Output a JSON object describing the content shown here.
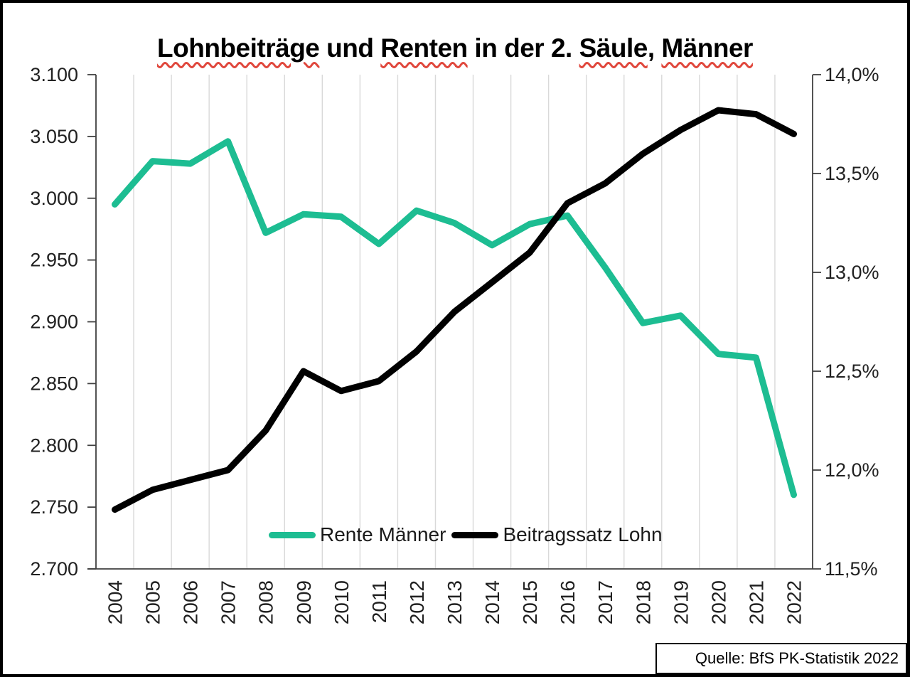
{
  "title": {
    "full": "Lohnbeiträge und Renten in der 2. Säule, Männer",
    "segments": [
      {
        "text": "Lohnbeiträge",
        "misspelled": true
      },
      {
        "text": " und ",
        "misspelled": false
      },
      {
        "text": "Renten",
        "misspelled": true
      },
      {
        "text": " in der 2. ",
        "misspelled": false
      },
      {
        "text": "Säule",
        "misspelled": true
      },
      {
        "text": ", ",
        "misspelled": false
      },
      {
        "text": "Männer",
        "misspelled": true
      }
    ]
  },
  "source_note": "Quelle: BfS PK-Statistik 2022",
  "colors": {
    "rente": "#1dbd92",
    "beitrag": "#000000",
    "gridline": "#d9d9d9",
    "axis_line": "#404040",
    "axis_text": "#212121",
    "squiggle": "#e0473c"
  },
  "chart_data": {
    "type": "line",
    "title": "Lohnbeiträge und Renten in der 2. Säule, Männer",
    "grid": "vertical-only",
    "legend_position": "bottom-center-inside",
    "categories": [
      "2004",
      "2005",
      "2006",
      "2007",
      "2008",
      "2009",
      "2010",
      "2011",
      "2012",
      "2013",
      "2014",
      "2015",
      "2016",
      "2017",
      "2018",
      "2019",
      "2020",
      "2021",
      "2022"
    ],
    "series": [
      {
        "name": "Rente Männer",
        "axis": "left",
        "color_key": "rente",
        "values": [
          2995,
          3030,
          3028,
          3046,
          2972,
          2987,
          2985,
          2963,
          2990,
          2980,
          2962,
          2979,
          2986,
          2944,
          2899,
          2905,
          2874,
          2871,
          2760
        ]
      },
      {
        "name": "Beitragssatz Lohn",
        "axis": "right",
        "color_key": "beitrag",
        "values": [
          11.8,
          11.9,
          11.95,
          12.0,
          12.2,
          12.5,
          12.4,
          12.45,
          12.6,
          12.8,
          12.95,
          13.1,
          13.35,
          13.45,
          13.6,
          13.72,
          13.82,
          13.8,
          13.7
        ]
      }
    ],
    "left_axis": {
      "min": 2700,
      "max": 3100,
      "tick_values": [
        3100,
        3050,
        3000,
        2950,
        2900,
        2850,
        2800,
        2750,
        2700
      ],
      "tick_labels": [
        "3.100",
        "3.050",
        "3.000",
        "2.950",
        "2.900",
        "2.850",
        "2.800",
        "2.750",
        "2.700"
      ]
    },
    "right_axis": {
      "min": 11.5,
      "max": 14.0,
      "tick_values": [
        14.0,
        13.5,
        13.0,
        12.5,
        12.0,
        11.5
      ],
      "tick_labels": [
        "14,0%",
        "13,5%",
        "13,0%",
        "12,5%",
        "12,0%",
        "11,5%"
      ]
    }
  }
}
